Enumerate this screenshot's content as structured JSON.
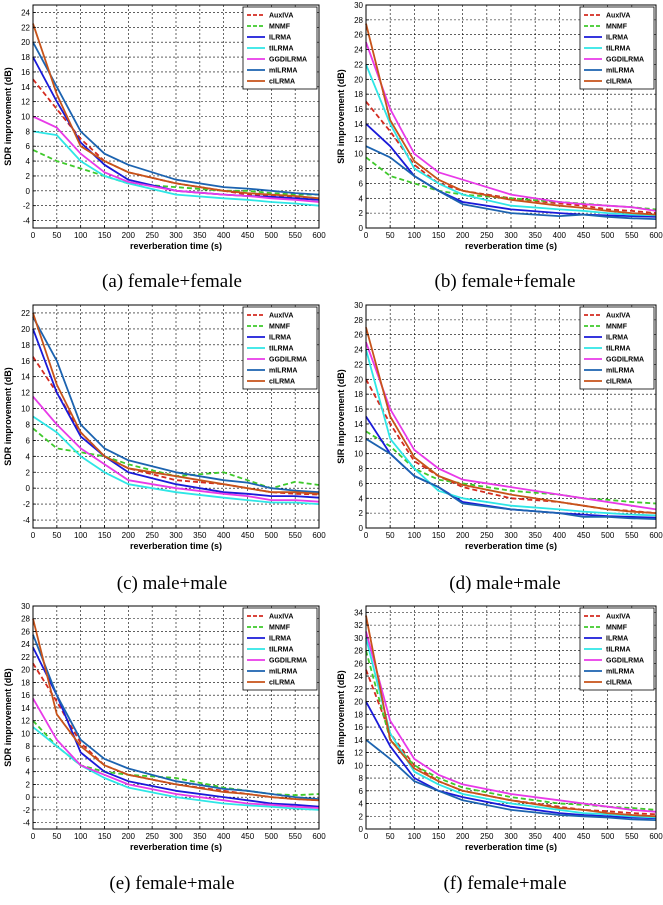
{
  "figure": {
    "captions": [
      "(a) female+female",
      "(b) female+female",
      "(c) male+male",
      "(d) male+male",
      "(e) female+male",
      "(f) female+male"
    ]
  },
  "legend_colors": {
    "AuxIVA": "#d42b20",
    "MNMF": "#3fc92b",
    "ILRMA": "#1a1ad8",
    "tILRMA": "#2ee6e6",
    "GGDILRMA": "#e83ae8",
    "mILRMA": "#1c63b0",
    "cILRMA": "#c7531a"
  },
  "chart_data": [
    {
      "type": "line",
      "xlabel": "reverberation time (s)",
      "ylabel": "SDR improvement (dB)",
      "xlim": [
        0,
        600
      ],
      "ylim": [
        -5,
        25
      ],
      "xticks": [
        0,
        50,
        100,
        150,
        200,
        250,
        300,
        350,
        400,
        450,
        500,
        550,
        600
      ],
      "yticks": [
        -4,
        -2,
        0,
        2,
        4,
        6,
        8,
        10,
        12,
        14,
        16,
        18,
        20,
        22,
        24
      ],
      "grid": true,
      "legend_position": "top-right",
      "x": [
        0,
        50,
        100,
        150,
        200,
        300,
        400,
        450,
        500,
        550,
        600
      ],
      "series": [
        {
          "name": "AuxIVA",
          "dashed": true,
          "values": [
            15,
            11,
            7,
            4,
            2.5,
            1,
            0,
            -0.5,
            -0.7,
            -0.8,
            -1
          ]
        },
        {
          "name": "MNMF",
          "dashed": true,
          "values": [
            5.5,
            4,
            3,
            2,
            1,
            0.5,
            0,
            0,
            -0.3,
            -0.5,
            -0.5
          ]
        },
        {
          "name": "ILRMA",
          "dashed": false,
          "values": [
            18,
            12,
            6.5,
            3.5,
            1.5,
            0,
            -0.5,
            -0.7,
            -0.8,
            -1,
            -1.2
          ]
        },
        {
          "name": "tILRMA",
          "dashed": false,
          "values": [
            8,
            7.5,
            4,
            2,
            1,
            -0.5,
            -1,
            -1.2,
            -1.5,
            -1.7,
            -2
          ]
        },
        {
          "name": "GGDILRMA",
          "dashed": false,
          "values": [
            10,
            8.5,
            5,
            2.5,
            1.2,
            0,
            -0.5,
            -0.7,
            -1,
            -1.2,
            -1.5
          ]
        },
        {
          "name": "mILRMA",
          "dashed": false,
          "values": [
            20,
            14,
            8,
            5,
            3.5,
            1.5,
            0.5,
            0.3,
            0,
            -0.3,
            -0.5
          ]
        },
        {
          "name": "cILRMA",
          "dashed": false,
          "values": [
            22.5,
            13,
            6,
            4,
            2.5,
            1,
            0,
            -0.3,
            -0.5,
            -0.7,
            -1
          ]
        }
      ]
    },
    {
      "type": "line",
      "xlabel": "reverberation time (s)",
      "ylabel": "SIR improvement (dB)",
      "xlim": [
        0,
        600
      ],
      "ylim": [
        0,
        30
      ],
      "xticks": [
        0,
        50,
        100,
        150,
        200,
        250,
        300,
        350,
        400,
        450,
        500,
        550,
        600
      ],
      "yticks": [
        0,
        2,
        4,
        6,
        8,
        10,
        12,
        14,
        16,
        18,
        20,
        22,
        24,
        26,
        28,
        30
      ],
      "grid": true,
      "legend_position": "top-right",
      "x": [
        0,
        50,
        100,
        150,
        200,
        300,
        400,
        450,
        500,
        550,
        600
      ],
      "series": [
        {
          "name": "AuxIVA",
          "dashed": true,
          "values": [
            17,
            13,
            8.5,
            6,
            5,
            4,
            3.3,
            3,
            2.5,
            2.3,
            2
          ]
        },
        {
          "name": "MNMF",
          "dashed": true,
          "values": [
            9.5,
            7,
            6,
            5,
            4.5,
            4,
            3.5,
            3.3,
            3,
            2.8,
            2.5
          ]
        },
        {
          "name": "ILRMA",
          "dashed": false,
          "values": [
            14,
            11,
            7,
            5,
            3.5,
            2.5,
            2,
            1.8,
            1.7,
            1.6,
            1.5
          ]
        },
        {
          "name": "tILRMA",
          "dashed": false,
          "values": [
            22,
            14,
            8,
            6,
            4.5,
            3,
            2.5,
            2.3,
            2,
            1.8,
            1.7
          ]
        },
        {
          "name": "GGDILRMA",
          "dashed": false,
          "values": [
            25,
            16,
            10,
            7.5,
            6.5,
            4.5,
            3.5,
            3.2,
            3,
            2.8,
            2.3
          ]
        },
        {
          "name": "mILRMA",
          "dashed": false,
          "values": [
            11,
            9.5,
            7,
            5,
            3.2,
            2,
            1.6,
            1.8,
            1.5,
            1.3,
            1.2
          ]
        },
        {
          "name": "cILRMA",
          "dashed": false,
          "values": [
            27.5,
            14.5,
            9,
            6.5,
            5,
            3.8,
            3,
            2.7,
            2.3,
            2,
            1.8
          ]
        }
      ]
    },
    {
      "type": "line",
      "xlabel": "reverberation time (s)",
      "ylabel": "SDR improvement (dB)",
      "xlim": [
        0,
        600
      ],
      "ylim": [
        -5,
        23
      ],
      "xticks": [
        0,
        50,
        100,
        150,
        200,
        250,
        300,
        350,
        400,
        450,
        500,
        550,
        600
      ],
      "yticks": [
        -4,
        -2,
        0,
        2,
        4,
        6,
        8,
        10,
        12,
        14,
        16,
        18,
        20,
        22
      ],
      "grid": true,
      "legend_position": "top-right",
      "x": [
        0,
        50,
        100,
        150,
        200,
        300,
        400,
        450,
        500,
        550,
        600
      ],
      "series": [
        {
          "name": "AuxIVA",
          "dashed": true,
          "values": [
            16.5,
            12,
            7,
            4,
            2.5,
            1,
            0.5,
            0,
            -0.5,
            -0.7,
            -0.8
          ]
        },
        {
          "name": "MNMF",
          "dashed": true,
          "values": [
            7.5,
            5,
            4.5,
            4,
            3,
            1.5,
            2,
            1,
            0,
            0.8,
            0.4
          ]
        },
        {
          "name": "ILRMA",
          "dashed": false,
          "values": [
            20,
            12,
            6.5,
            4,
            2,
            0.5,
            -0.5,
            -0.7,
            -1,
            -1,
            -1.2
          ]
        },
        {
          "name": "tILRMA",
          "dashed": false,
          "values": [
            9,
            7,
            4,
            2,
            0.5,
            -0.5,
            -1.2,
            -1.5,
            -1.8,
            -1.8,
            -2
          ]
        },
        {
          "name": "GGDILRMA",
          "dashed": false,
          "values": [
            11.5,
            8,
            5,
            3,
            1,
            0,
            -0.7,
            -1,
            -1.5,
            -1.5,
            -1.7
          ]
        },
        {
          "name": "mILRMA",
          "dashed": false,
          "values": [
            21.5,
            16,
            8,
            5,
            3.5,
            2,
            1,
            0.7,
            0,
            -0.3,
            -0.5
          ]
        },
        {
          "name": "cILRMA",
          "dashed": false,
          "values": [
            22,
            13,
            7,
            4,
            2.5,
            1.5,
            0.5,
            0,
            -0.5,
            -0.5,
            -0.7
          ]
        }
      ]
    },
    {
      "type": "line",
      "xlabel": "reverberation time (s)",
      "ylabel": "SIR improvement (dB)",
      "xlim": [
        0,
        600
      ],
      "ylim": [
        0,
        30
      ],
      "xticks": [
        0,
        50,
        100,
        150,
        200,
        250,
        300,
        350,
        400,
        450,
        500,
        550,
        600
      ],
      "yticks": [
        0,
        2,
        4,
        6,
        8,
        10,
        12,
        14,
        16,
        18,
        20,
        22,
        24,
        26,
        28,
        30
      ],
      "grid": true,
      "legend_position": "top-right",
      "x": [
        0,
        50,
        100,
        150,
        200,
        300,
        400,
        450,
        500,
        550,
        600
      ],
      "series": [
        {
          "name": "AuxIVA",
          "dashed": true,
          "values": [
            20,
            14,
            9,
            7,
            5.5,
            4,
            3.5,
            3,
            2.5,
            2.3,
            2
          ]
        },
        {
          "name": "MNMF",
          "dashed": true,
          "values": [
            13,
            11,
            8,
            6.5,
            6,
            5,
            4.5,
            4,
            3.8,
            3.5,
            3.3
          ]
        },
        {
          "name": "ILRMA",
          "dashed": false,
          "values": [
            15,
            10,
            7,
            5.5,
            3.5,
            2.5,
            2,
            1.8,
            1.6,
            1.5,
            1.4
          ]
        },
        {
          "name": "tILRMA",
          "dashed": false,
          "values": [
            24,
            12,
            8,
            5,
            4,
            3,
            2.5,
            2.2,
            2,
            1.8,
            1.7
          ]
        },
        {
          "name": "GGDILRMA",
          "dashed": false,
          "values": [
            25,
            16,
            10.5,
            8,
            6.5,
            5.5,
            4.5,
            4,
            3.5,
            3,
            2.5
          ]
        },
        {
          "name": "mILRMA",
          "dashed": false,
          "values": [
            12,
            10,
            7,
            5.5,
            3.3,
            2.5,
            2,
            1.5,
            1.5,
            1.3,
            1.2
          ]
        },
        {
          "name": "cILRMA",
          "dashed": false,
          "values": [
            27,
            15,
            9.5,
            7,
            5.8,
            4.5,
            3.5,
            3,
            2.5,
            2.2,
            2
          ]
        }
      ]
    },
    {
      "type": "line",
      "xlabel": "reverberation time (s)",
      "ylabel": "SDR improvement (dB)",
      "xlim": [
        0,
        600
      ],
      "ylim": [
        -5,
        30
      ],
      "xticks": [
        0,
        50,
        100,
        150,
        200,
        250,
        300,
        350,
        400,
        450,
        500,
        550,
        600
      ],
      "yticks": [
        -4,
        -2,
        0,
        2,
        4,
        6,
        8,
        10,
        12,
        14,
        16,
        18,
        20,
        22,
        24,
        26,
        28,
        30
      ],
      "grid": true,
      "legend_position": "top-right",
      "x": [
        0,
        50,
        100,
        150,
        200,
        300,
        400,
        450,
        500,
        550,
        600
      ],
      "series": [
        {
          "name": "AuxIVA",
          "dashed": true,
          "values": [
            21,
            15,
            8.5,
            5,
            3.5,
            2,
            1,
            0.5,
            0,
            -0.3,
            -0.5
          ]
        },
        {
          "name": "MNMF",
          "dashed": true,
          "values": [
            12,
            8,
            5,
            4,
            3.5,
            3,
            1.5,
            1,
            0.5,
            0.3,
            0.5
          ]
        },
        {
          "name": "ILRMA",
          "dashed": false,
          "values": [
            23.5,
            16,
            7,
            4,
            2.5,
            1,
            0,
            -0.5,
            -1,
            -1.2,
            -1.5
          ]
        },
        {
          "name": "tILRMA",
          "dashed": false,
          "values": [
            11,
            8,
            5,
            3,
            1.5,
            0,
            -1,
            -1.3,
            -1.5,
            -1.8,
            -2
          ]
        },
        {
          "name": "GGDILRMA",
          "dashed": false,
          "values": [
            15.5,
            9,
            5,
            3.5,
            2,
            0.5,
            -0.5,
            -1,
            -1.2,
            -1.5,
            -1.7
          ]
        },
        {
          "name": "mILRMA",
          "dashed": false,
          "values": [
            25.5,
            16,
            9,
            6,
            4.5,
            2.5,
            1.3,
            1,
            0.5,
            0,
            -0.3
          ]
        },
        {
          "name": "cILRMA",
          "dashed": false,
          "values": [
            28,
            13,
            8,
            5,
            3.5,
            2,
            0.8,
            0.5,
            0,
            -0.3,
            -0.5
          ]
        }
      ]
    },
    {
      "type": "line",
      "xlabel": "reverberation time (s)",
      "ylabel": "SIR improvement (dB)",
      "xlim": [
        0,
        600
      ],
      "ylim": [
        0,
        35
      ],
      "xticks": [
        0,
        50,
        100,
        150,
        200,
        250,
        300,
        350,
        400,
        450,
        500,
        550,
        600
      ],
      "yticks": [
        0,
        2,
        4,
        6,
        8,
        10,
        12,
        14,
        16,
        18,
        20,
        22,
        24,
        26,
        28,
        30,
        32,
        34
      ],
      "grid": true,
      "legend_position": "top-right",
      "x": [
        0,
        50,
        100,
        150,
        200,
        300,
        400,
        450,
        500,
        550,
        600
      ],
      "series": [
        {
          "name": "AuxIVA",
          "dashed": true,
          "values": [
            25,
            15,
            10,
            7.5,
            6,
            4.5,
            3.5,
            3,
            2.8,
            2.5,
            2.3
          ]
        },
        {
          "name": "MNMF",
          "dashed": true,
          "values": [
            28,
            14,
            10,
            8,
            6.5,
            5,
            4,
            3.8,
            3.5,
            3.3,
            3
          ]
        },
        {
          "name": "ILRMA",
          "dashed": false,
          "values": [
            20,
            13,
            8,
            6,
            5,
            3.5,
            2.5,
            2.2,
            2,
            1.8,
            1.7
          ]
        },
        {
          "name": "tILRMA",
          "dashed": false,
          "values": [
            30,
            15,
            9,
            7,
            5.5,
            4,
            3,
            2.5,
            2.3,
            2,
            1.8
          ]
        },
        {
          "name": "GGDILRMA",
          "dashed": false,
          "values": [
            31,
            17,
            11,
            8.5,
            7,
            5.5,
            4.5,
            4,
            3.5,
            3,
            2.7
          ]
        },
        {
          "name": "mILRMA",
          "dashed": false,
          "values": [
            14,
            11,
            7.5,
            6,
            4.5,
            3,
            2.2,
            2,
            1.8,
            1.5,
            1.4
          ]
        },
        {
          "name": "cILRMA",
          "dashed": false,
          "values": [
            33.5,
            14,
            9.5,
            7.5,
            6,
            4.5,
            3.3,
            3,
            2.5,
            2.2,
            2
          ]
        }
      ]
    }
  ]
}
